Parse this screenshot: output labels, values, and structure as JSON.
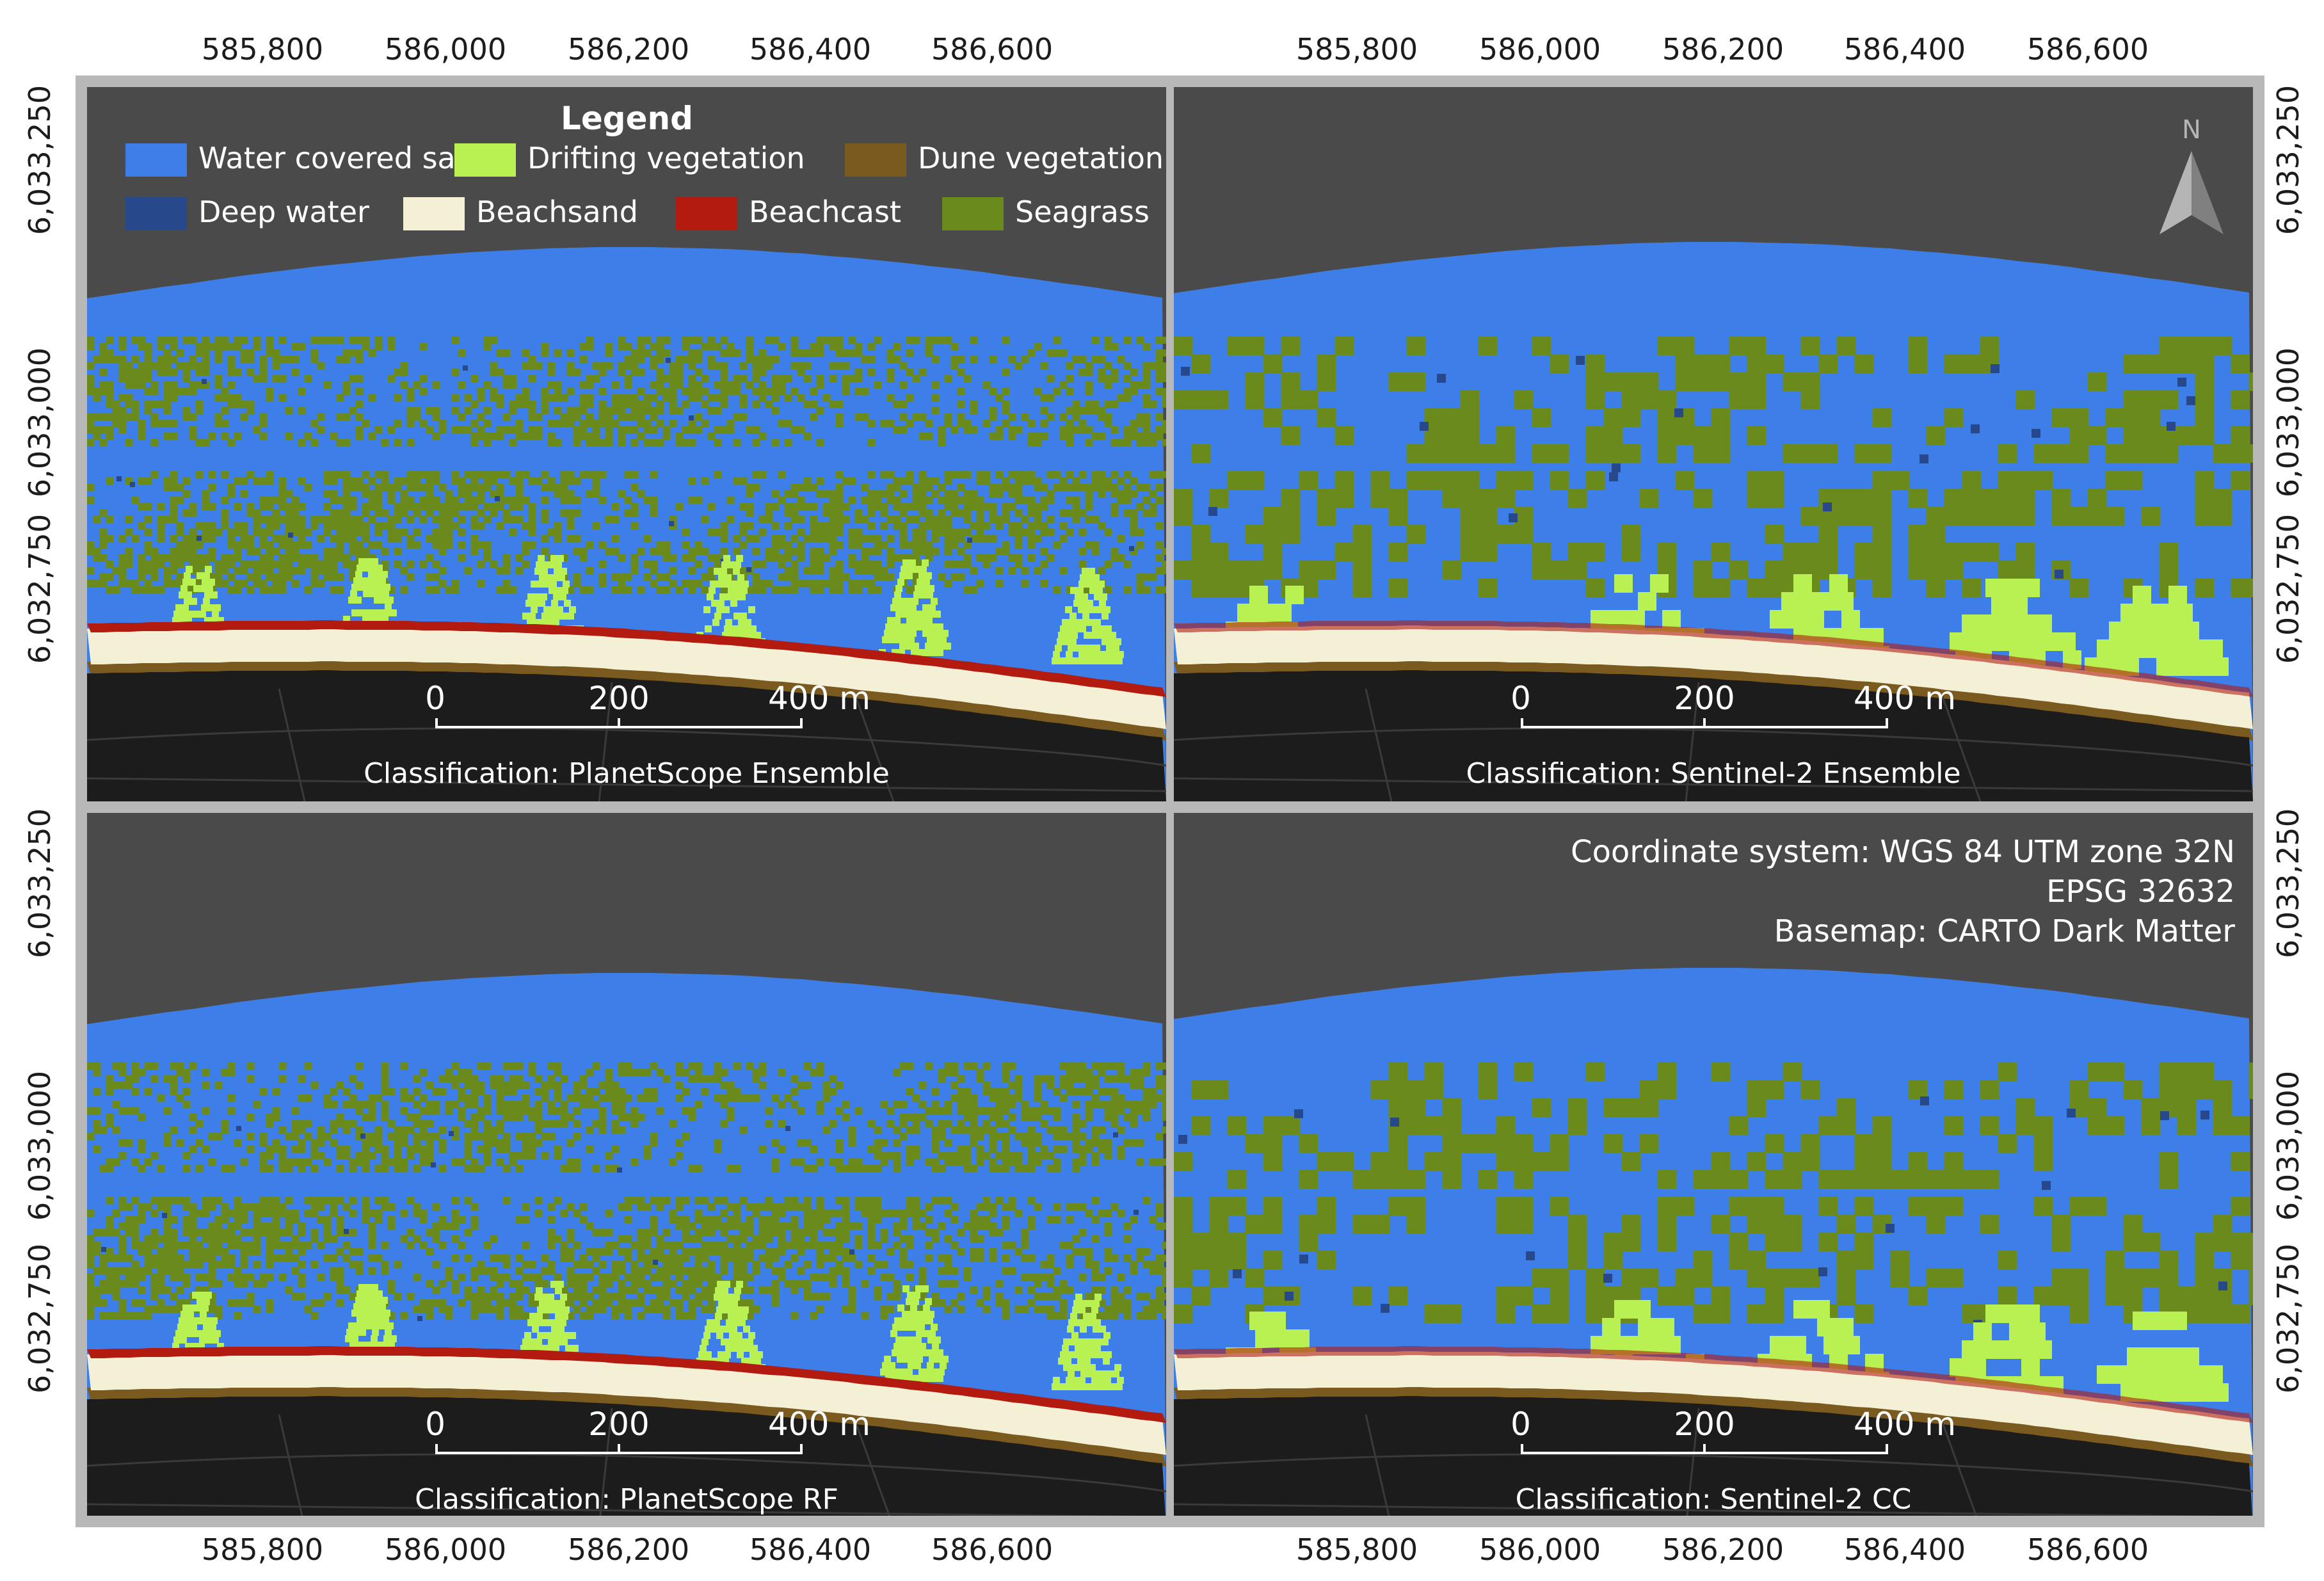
{
  "axes": {
    "x_ticks": [
      "585,800",
      "586,000",
      "586,200",
      "586,400",
      "586,600"
    ],
    "y_ticks": [
      "6,033,250",
      "6,033,000",
      "6,032,750"
    ]
  },
  "legend": {
    "title": "Legend",
    "items": [
      {
        "label": "Water covered sand",
        "color": "#3e7ee8"
      },
      {
        "label": "Drifting vegetation",
        "color": "#b9f152"
      },
      {
        "label": "Dune vegetation",
        "color": "#7a5a1e"
      },
      {
        "label": "Deep water",
        "color": "#27488a"
      },
      {
        "label": "Beachsand",
        "color": "#f3f0d6"
      },
      {
        "label": "Beachcast",
        "color": "#b31a10"
      },
      {
        "label": "Seagrass",
        "color": "#6b8a1c"
      }
    ]
  },
  "colors": {
    "sky": "#4a4a4a",
    "land": "#1c1c1c",
    "water": "#3e7ee8",
    "seagrass": "#6b8a1c",
    "drifting": "#b9f152",
    "beachsand": "#f3f0d6",
    "beachcast": "#b31a10",
    "dune": "#7a5a1e",
    "deep": "#27488a"
  },
  "scalebar": {
    "labels": [
      "0",
      "200",
      "400 m"
    ]
  },
  "panels": [
    {
      "caption": "Classification: PlanetScope Ensemble"
    },
    {
      "caption": "Classification: Sentinel-2 Ensemble"
    },
    {
      "caption": "Classification: PlanetScope RF"
    },
    {
      "caption": "Classification: Sentinel-2 CC"
    }
  ],
  "north_arrow": {
    "label": "N"
  },
  "coordinate_info": {
    "line1": "Coordinate system: WGS 84 UTM zone 32N",
    "line2": "EPSG 32632",
    "line3": "Basemap: CARTO Dark Matter"
  }
}
